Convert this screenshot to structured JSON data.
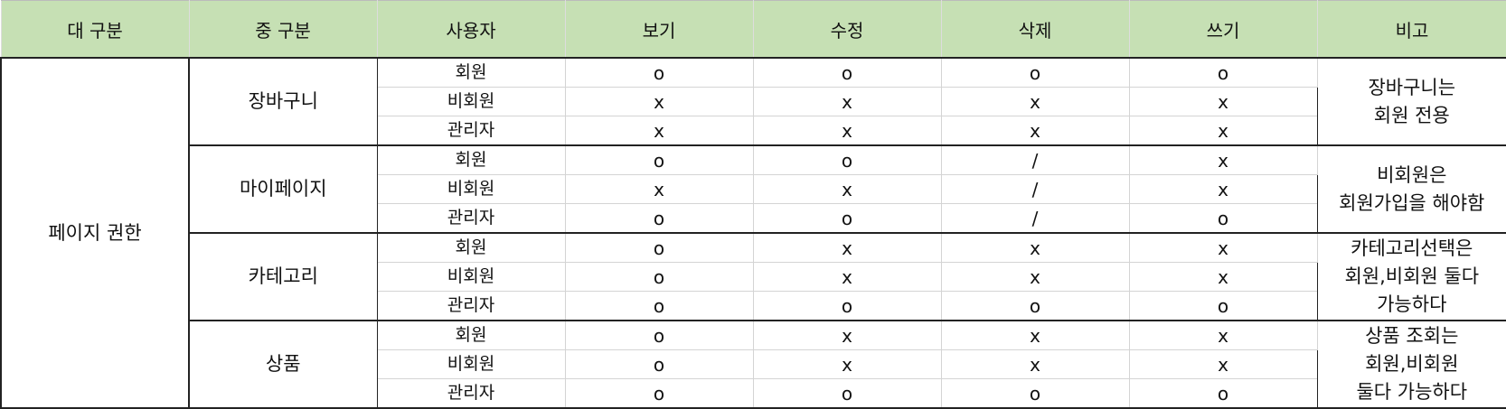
{
  "headers": [
    "대 구분",
    "중 구분",
    "사용자",
    "보기",
    "수정",
    "삭제",
    "쓰기",
    "비고"
  ],
  "major": "페이지 권한",
  "groups": [
    {
      "name": "장바구니",
      "note": [
        "장바구니는",
        "회원 전용"
      ],
      "rows": [
        {
          "user": "회원",
          "view": "o",
          "edit": "o",
          "delete": "o",
          "write": "o"
        },
        {
          "user": "비회원",
          "view": "x",
          "edit": "x",
          "delete": "x",
          "write": "x"
        },
        {
          "user": "관리자",
          "view": "x",
          "edit": "x",
          "delete": "x",
          "write": "x"
        }
      ]
    },
    {
      "name": "마이페이지",
      "note": [
        "비회원은",
        "회원가입을 해야함"
      ],
      "rows": [
        {
          "user": "회원",
          "view": "o",
          "edit": "o",
          "delete": "/",
          "write": "x"
        },
        {
          "user": "비회원",
          "view": "x",
          "edit": "x",
          "delete": "/",
          "write": "x"
        },
        {
          "user": "관리자",
          "view": "o",
          "edit": "o",
          "delete": "/",
          "write": "o"
        }
      ]
    },
    {
      "name": "카테고리",
      "note": [
        "카테고리선택은",
        "회원,비회원 둘다",
        "가능하다"
      ],
      "rows": [
        {
          "user": "회원",
          "view": "o",
          "edit": "x",
          "delete": "x",
          "write": "x"
        },
        {
          "user": "비회원",
          "view": "o",
          "edit": "x",
          "delete": "x",
          "write": "x"
        },
        {
          "user": "관리자",
          "view": "o",
          "edit": "o",
          "delete": "o",
          "write": "o"
        }
      ]
    },
    {
      "name": "상품",
      "note": [
        "상품 조회는",
        "회원,비회원",
        "둘다 가능하다"
      ],
      "rows": [
        {
          "user": "회원",
          "view": "o",
          "edit": "x",
          "delete": "x",
          "write": "x"
        },
        {
          "user": "비회원",
          "view": "o",
          "edit": "x",
          "delete": "x",
          "write": "x"
        },
        {
          "user": "관리자",
          "view": "o",
          "edit": "o",
          "delete": "o",
          "write": "o"
        }
      ]
    }
  ]
}
